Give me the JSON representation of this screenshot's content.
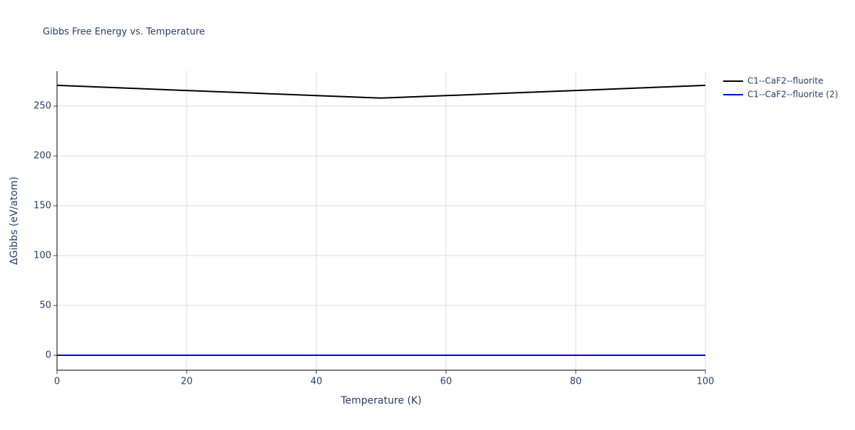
{
  "chart_data": {
    "type": "line",
    "title": "Gibbs Free Energy vs. Temperature",
    "x_label": "Temperature (K)",
    "y_label": "ΔGibbs (eV/atom)",
    "x": [
      0,
      10,
      20,
      30,
      40,
      50,
      60,
      70,
      80,
      90,
      100
    ],
    "series": [
      {
        "name": "C1--CaF2--fluorite",
        "color": "#000000",
        "values": [
          270.8,
          268.2,
          265.6,
          263.1,
          260.5,
          258.0,
          260.5,
          263.1,
          265.6,
          268.2,
          270.8
        ]
      },
      {
        "name": "C1--CaF2--fluorite (2)",
        "color": "#0000ff",
        "values": [
          0,
          0,
          0,
          0,
          0,
          0,
          0,
          0,
          0,
          0,
          0
        ]
      }
    ],
    "xlim": [
      0,
      100
    ],
    "xticks": [
      0,
      20,
      40,
      60,
      80,
      100
    ],
    "ylim": [
      -15,
      285
    ],
    "yticks": [
      0,
      50,
      100,
      150,
      200,
      250
    ],
    "grid": true,
    "legend": "right"
  }
}
